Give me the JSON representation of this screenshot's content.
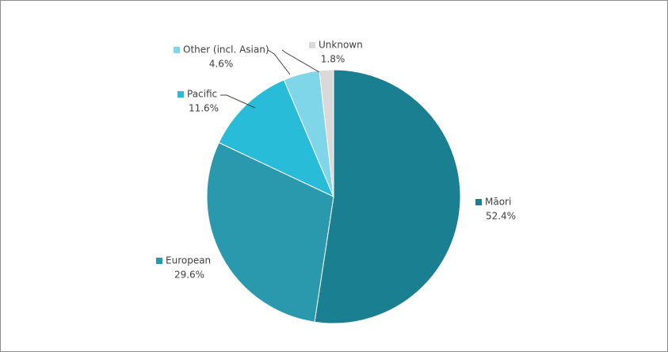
{
  "chart_data": {
    "type": "pie",
    "categories": [
      "Māori",
      "European",
      "Pacific",
      "Other (incl. Asian)",
      "Unknown"
    ],
    "values": [
      52.4,
      29.6,
      11.6,
      4.6,
      1.8
    ],
    "value_labels": [
      "52.4%",
      "29.6%",
      "11.6%",
      "4.6%",
      "1.8%"
    ],
    "colors": [
      "#1a7f91",
      "#2a98ad",
      "#29bcd9",
      "#7ed6e8",
      "#d9d9d9"
    ]
  }
}
